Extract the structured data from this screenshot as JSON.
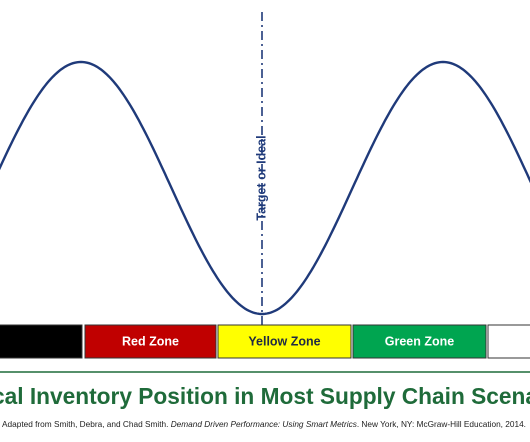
{
  "diagram": {
    "target_label": "Target or Ideal",
    "zones": [
      {
        "label": "",
        "fill": "#000000",
        "text_color": "#ffffff"
      },
      {
        "label": "Red Zone",
        "fill": "#c00000",
        "text_color": "#ffffff"
      },
      {
        "label": "Yellow Zone",
        "fill": "#ffff00",
        "text_color": "#1f2a44"
      },
      {
        "label": "Green Zone",
        "fill": "#00a550",
        "text_color": "#ffffff"
      },
      {
        "label": "",
        "fill": "#ffffff",
        "text_color": "#1f2a44"
      }
    ],
    "title": "cal Inventory Position in Most Supply Chain Scena",
    "citation": {
      "before": "Adapted from Smith, Debra, and Chad Smith. ",
      "italic": "Demand Driven Performance: Using Smart Metrics",
      "after": ". New York, NY: McGraw-Hill Education, 2014."
    },
    "colors": {
      "curve": "#1f3a7a",
      "dashline": "#1f3a7a",
      "target_label": "#1f3a7a",
      "title": "#1f6b3a",
      "divider": "#1f6b3a",
      "citation": "#222222"
    }
  }
}
